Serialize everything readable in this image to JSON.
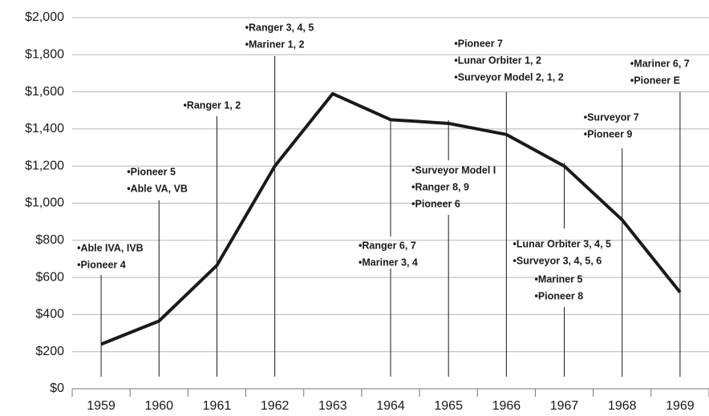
{
  "chart_data": {
    "type": "line",
    "categories": [
      "1959",
      "1960",
      "1961",
      "1962",
      "1963",
      "1964",
      "1965",
      "1966",
      "1967",
      "1968",
      "1969"
    ],
    "values": [
      240,
      365,
      665,
      1200,
      1590,
      1450,
      1430,
      1370,
      1200,
      910,
      520
    ],
    "color": "#1a1a1a",
    "ylim": [
      0,
      2000
    ],
    "yticks": [
      {
        "value": 0,
        "label": "$0"
      },
      {
        "value": 200,
        "label": "$200"
      },
      {
        "value": 400,
        "label": "$400"
      },
      {
        "value": 600,
        "label": "$600"
      },
      {
        "value": 800,
        "label": "$800"
      },
      {
        "value": 1000,
        "label": "$1,000"
      },
      {
        "value": 1200,
        "label": "$1,200"
      },
      {
        "value": 1400,
        "label": "$1,400"
      },
      {
        "value": 1600,
        "label": "$1,600"
      },
      {
        "value": 1800,
        "label": "$1,800"
      },
      {
        "value": 2000,
        "label": "$2,000"
      }
    ],
    "grid": true,
    "annotations": [
      {
        "year": "1959",
        "lines": [
          "•Able IVA, IVB",
          "•Pioneer  4"
        ]
      },
      {
        "year": "1960",
        "lines": [
          "•Pioneer 5",
          "•Able VA, VB"
        ]
      },
      {
        "year": "1961",
        "lines": [
          "•Ranger 1, 2"
        ]
      },
      {
        "year": "1962",
        "lines": [
          "•Ranger 3, 4, 5",
          "•Mariner 1, 2"
        ]
      },
      {
        "year": "1964",
        "lines": [
          "•Ranger 6, 7",
          "•Mariner 3, 4"
        ]
      },
      {
        "year": "1965",
        "lines": [
          "•Surveyor Model I",
          "•Ranger 8, 9",
          "•Pioneer 6"
        ]
      },
      {
        "year": "1966",
        "lines": [
          "•Pioneer 7",
          "•Lunar Orbiter 1, 2",
          "•Surveyor Model 2, 1, 2"
        ]
      },
      {
        "year": "1967",
        "lines": [
          "•Lunar Orbiter 3, 4, 5",
          "•Surveyor 3, 4, 5, 6"
        ]
      },
      {
        "year": "1967",
        "lines": [
          "•Mariner 5",
          "•Pioneer 8"
        ]
      },
      {
        "year": "1968",
        "lines": [
          "•Surveyor 7",
          "•Pioneer 9"
        ]
      },
      {
        "year": "1969",
        "lines": [
          "•Mariner 6, 7",
          "•Pioneer E"
        ]
      }
    ]
  }
}
